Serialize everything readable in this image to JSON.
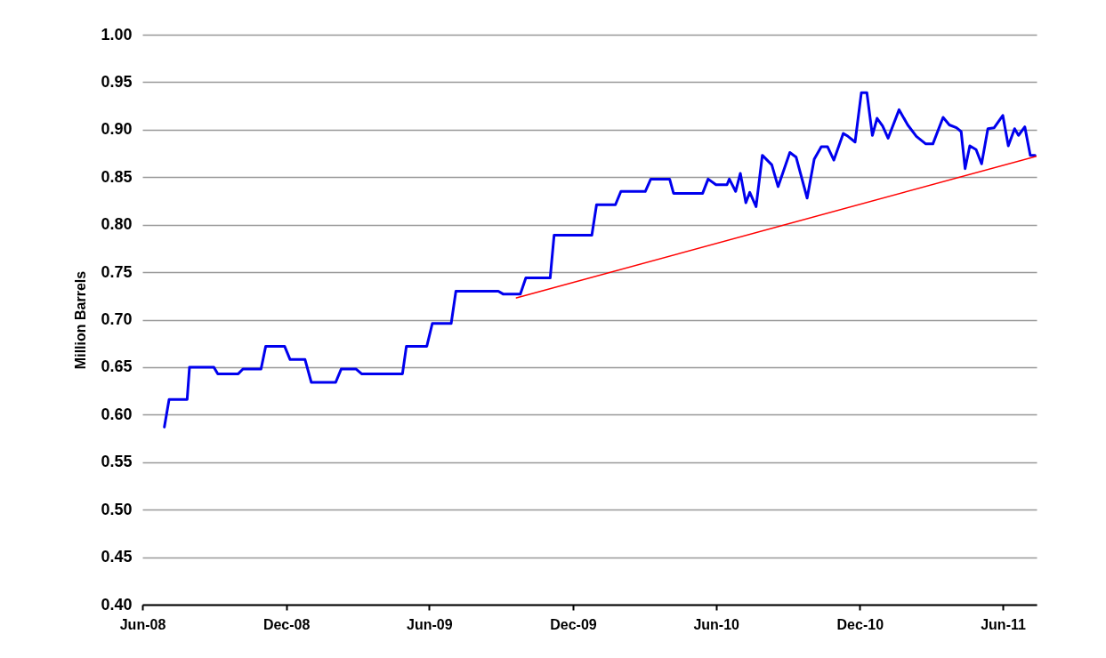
{
  "chart_data": {
    "type": "line",
    "ylabel": "Million Barrels",
    "ylim": [
      0.4,
      1.0
    ],
    "yticks": [
      {
        "value": 0.4,
        "label": "0.40"
      },
      {
        "value": 0.45,
        "label": "0.45"
      },
      {
        "value": 0.5,
        "label": "0.50"
      },
      {
        "value": 0.55,
        "label": "0.55"
      },
      {
        "value": 0.6,
        "label": "0.60"
      },
      {
        "value": 0.65,
        "label": "0.65"
      },
      {
        "value": 0.7,
        "label": "0.70"
      },
      {
        "value": 0.75,
        "label": "0.75"
      },
      {
        "value": 0.8,
        "label": "0.80"
      },
      {
        "value": 0.85,
        "label": "0.85"
      },
      {
        "value": 0.9,
        "label": "0.90"
      },
      {
        "value": 0.95,
        "label": "0.95"
      },
      {
        "value": 1.0,
        "label": "1.00"
      }
    ],
    "xlim": [
      "2008-06-01",
      "2011-07-14"
    ],
    "xticks": [
      {
        "value": "2008-06-01",
        "label": "Jun-08"
      },
      {
        "value": "2008-12-01",
        "label": "Dec-08"
      },
      {
        "value": "2009-06-01",
        "label": "Jun-09"
      },
      {
        "value": "2009-12-01",
        "label": "Dec-09"
      },
      {
        "value": "2010-06-01",
        "label": "Jun-10"
      },
      {
        "value": "2010-12-01",
        "label": "Dec-10"
      },
      {
        "value": "2011-06-01",
        "label": "Jun-11"
      }
    ],
    "grid": "y",
    "marker": "none",
    "line_style": "solid",
    "series": [
      {
        "color": "#0000ee",
        "x": [
          "2008-06-29",
          "2008-07-05",
          "2008-07-28",
          "2008-07-31",
          "2008-08-31",
          "2008-09-05",
          "2008-10-01",
          "2008-10-07",
          "2008-10-30",
          "2008-11-05",
          "2008-11-29",
          "2008-12-06",
          "2008-12-25",
          "2009-01-02",
          "2009-02-02",
          "2009-02-09",
          "2009-02-28",
          "2009-03-07",
          "2009-04-28",
          "2009-05-03",
          "2009-05-29",
          "2009-06-05",
          "2009-06-29",
          "2009-07-05",
          "2009-08-28",
          "2009-09-03",
          "2009-09-25",
          "2009-10-02",
          "2009-11-02",
          "2009-11-07",
          "2009-12-25",
          "2009-12-31",
          "2010-01-24",
          "2010-01-31",
          "2010-03-03",
          "2010-03-10",
          "2010-04-03",
          "2010-04-08",
          "2010-05-15",
          "2010-05-22",
          "2010-06-01",
          "2010-06-15",
          "2010-06-18",
          "2010-06-26",
          "2010-07-02",
          "2010-07-09",
          "2010-07-14",
          "2010-07-22",
          "2010-07-30",
          "2010-08-11",
          "2010-08-19",
          "2010-09-03",
          "2010-09-11",
          "2010-09-25",
          "2010-10-04",
          "2010-10-13",
          "2010-10-21",
          "2010-10-29",
          "2010-11-10",
          "2010-11-16",
          "2010-11-25",
          "2010-12-03",
          "2010-12-10",
          "2010-12-17",
          "2010-12-23",
          "2010-12-30",
          "2011-01-06",
          "2011-01-20",
          "2011-01-31",
          "2011-02-11",
          "2011-02-23",
          "2011-03-04",
          "2011-03-17",
          "2011-03-25",
          "2011-04-03",
          "2011-04-09",
          "2011-04-14",
          "2011-04-20",
          "2011-04-28",
          "2011-05-05",
          "2011-05-13",
          "2011-05-21",
          "2011-06-01",
          "2011-06-08",
          "2011-06-16",
          "2011-06-21",
          "2011-06-29",
          "2011-07-06",
          "2011-07-12"
        ],
        "values": [
          0.587,
          0.616,
          0.616,
          0.65,
          0.65,
          0.643,
          0.643,
          0.648,
          0.648,
          0.672,
          0.672,
          0.658,
          0.658,
          0.634,
          0.634,
          0.648,
          0.648,
          0.643,
          0.643,
          0.672,
          0.672,
          0.696,
          0.696,
          0.73,
          0.73,
          0.727,
          0.727,
          0.744,
          0.744,
          0.789,
          0.789,
          0.821,
          0.821,
          0.835,
          0.835,
          0.848,
          0.848,
          0.833,
          0.833,
          0.848,
          0.842,
          0.842,
          0.848,
          0.835,
          0.854,
          0.823,
          0.834,
          0.819,
          0.873,
          0.863,
          0.84,
          0.876,
          0.871,
          0.828,
          0.869,
          0.882,
          0.882,
          0.868,
          0.896,
          0.893,
          0.887,
          0.939,
          0.939,
          0.894,
          0.912,
          0.904,
          0.891,
          0.921,
          0.905,
          0.893,
          0.885,
          0.885,
          0.913,
          0.905,
          0.902,
          0.898,
          0.859,
          0.883,
          0.879,
          0.864,
          0.901,
          0.902,
          0.915,
          0.883,
          0.901,
          0.894,
          0.903,
          0.873,
          0.873
        ]
      },
      {
        "type": "line",
        "color": "#ff0000",
        "x": [
          "2009-09-20",
          "2011-07-14"
        ],
        "values": [
          0.723,
          0.872
        ]
      }
    ]
  }
}
